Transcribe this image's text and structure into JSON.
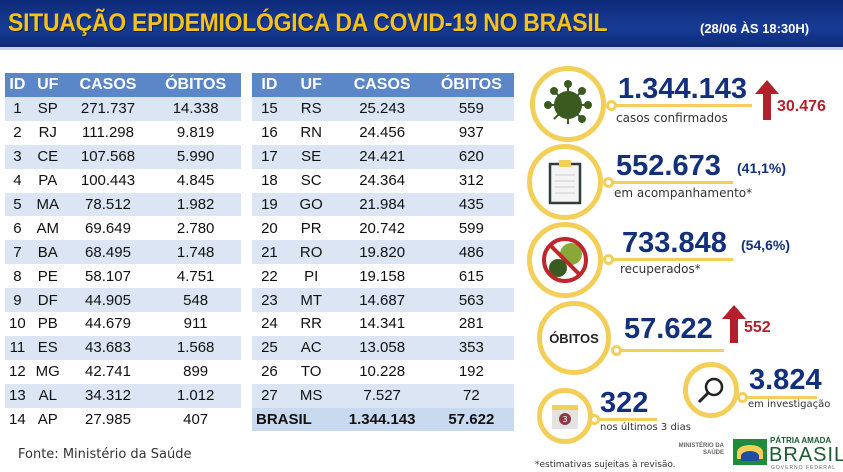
{
  "header": {
    "title": "SITUAÇÃO EPIDEMIOLÓGICA DA COVID-19 NO BRASIL",
    "date": "(28/06 ÀS 18:30H)"
  },
  "table_headers": [
    "ID",
    "UF",
    "CASOS",
    "ÓBITOS"
  ],
  "table_left": [
    [
      "1",
      "SP",
      "271.737",
      "14.338"
    ],
    [
      "2",
      "RJ",
      "111.298",
      "9.819"
    ],
    [
      "3",
      "CE",
      "107.568",
      "5.990"
    ],
    [
      "4",
      "PA",
      "100.443",
      "4.845"
    ],
    [
      "5",
      "MA",
      "78.512",
      "1.982"
    ],
    [
      "6",
      "AM",
      "69.649",
      "2.780"
    ],
    [
      "7",
      "BA",
      "68.495",
      "1.748"
    ],
    [
      "8",
      "PE",
      "58.107",
      "4.751"
    ],
    [
      "9",
      "DF",
      "44.905",
      "548"
    ],
    [
      "10",
      "PB",
      "44.679",
      "911"
    ],
    [
      "11",
      "ES",
      "43.683",
      "1.568"
    ],
    [
      "12",
      "MG",
      "42.741",
      "899"
    ],
    [
      "13",
      "AL",
      "34.312",
      "1.012"
    ],
    [
      "14",
      "AP",
      "27.985",
      "407"
    ]
  ],
  "table_right": [
    [
      "15",
      "RS",
      "25.243",
      "559"
    ],
    [
      "16",
      "RN",
      "24.456",
      "937"
    ],
    [
      "17",
      "SE",
      "24.421",
      "620"
    ],
    [
      "18",
      "SC",
      "24.364",
      "312"
    ],
    [
      "19",
      "GO",
      "21.984",
      "435"
    ],
    [
      "20",
      "PR",
      "20.742",
      "599"
    ],
    [
      "21",
      "RO",
      "19.820",
      "486"
    ],
    [
      "22",
      "PI",
      "19.158",
      "615"
    ],
    [
      "23",
      "MT",
      "14.687",
      "563"
    ],
    [
      "24",
      "RR",
      "14.341",
      "281"
    ],
    [
      "25",
      "AC",
      "13.058",
      "353"
    ],
    [
      "26",
      "TO",
      "10.228",
      "192"
    ],
    [
      "27",
      "MS",
      "7.527",
      "72"
    ]
  ],
  "total": {
    "label": "BRASIL",
    "casos": "1.344.143",
    "obitos": "57.622"
  },
  "stats": {
    "confirmed": {
      "value": "1.344.143",
      "delta": "30.476",
      "label": "casos confirmados",
      "icon": "virus-icon"
    },
    "monitoring": {
      "value": "552.673",
      "pct": "(41,1%)",
      "label": "em acompanhamento*",
      "icon": "clipboard-icon"
    },
    "recovered": {
      "value": "733.848",
      "pct": "(54,6%)",
      "label": "recuperados*",
      "icon": "no-virus-icon"
    },
    "deaths": {
      "badge": "ÓBITOS",
      "value": "57.622",
      "delta": "552"
    },
    "last3": {
      "value": "322",
      "label": "nos últimos 3 dias",
      "calendar": "3",
      "icon": "calendar-icon"
    },
    "investigation": {
      "value": "3.824",
      "label": "em investigação",
      "icon": "magnifier-icon"
    }
  },
  "footer": {
    "source": "Fonte: Ministério da Saúde",
    "note": "*estimativas sujeitas à revisão.",
    "ministry": "MINISTÉRIO DA SAÚDE",
    "brand_top": "PÁTRIA AMADA",
    "brand": "BRASIL",
    "brand_sub": "GOVERNO FEDERAL"
  },
  "colors": {
    "accent": "#f3cf5a",
    "navy": "#13307c",
    "red": "#b3202a",
    "header_blue": "#5b86c8"
  }
}
